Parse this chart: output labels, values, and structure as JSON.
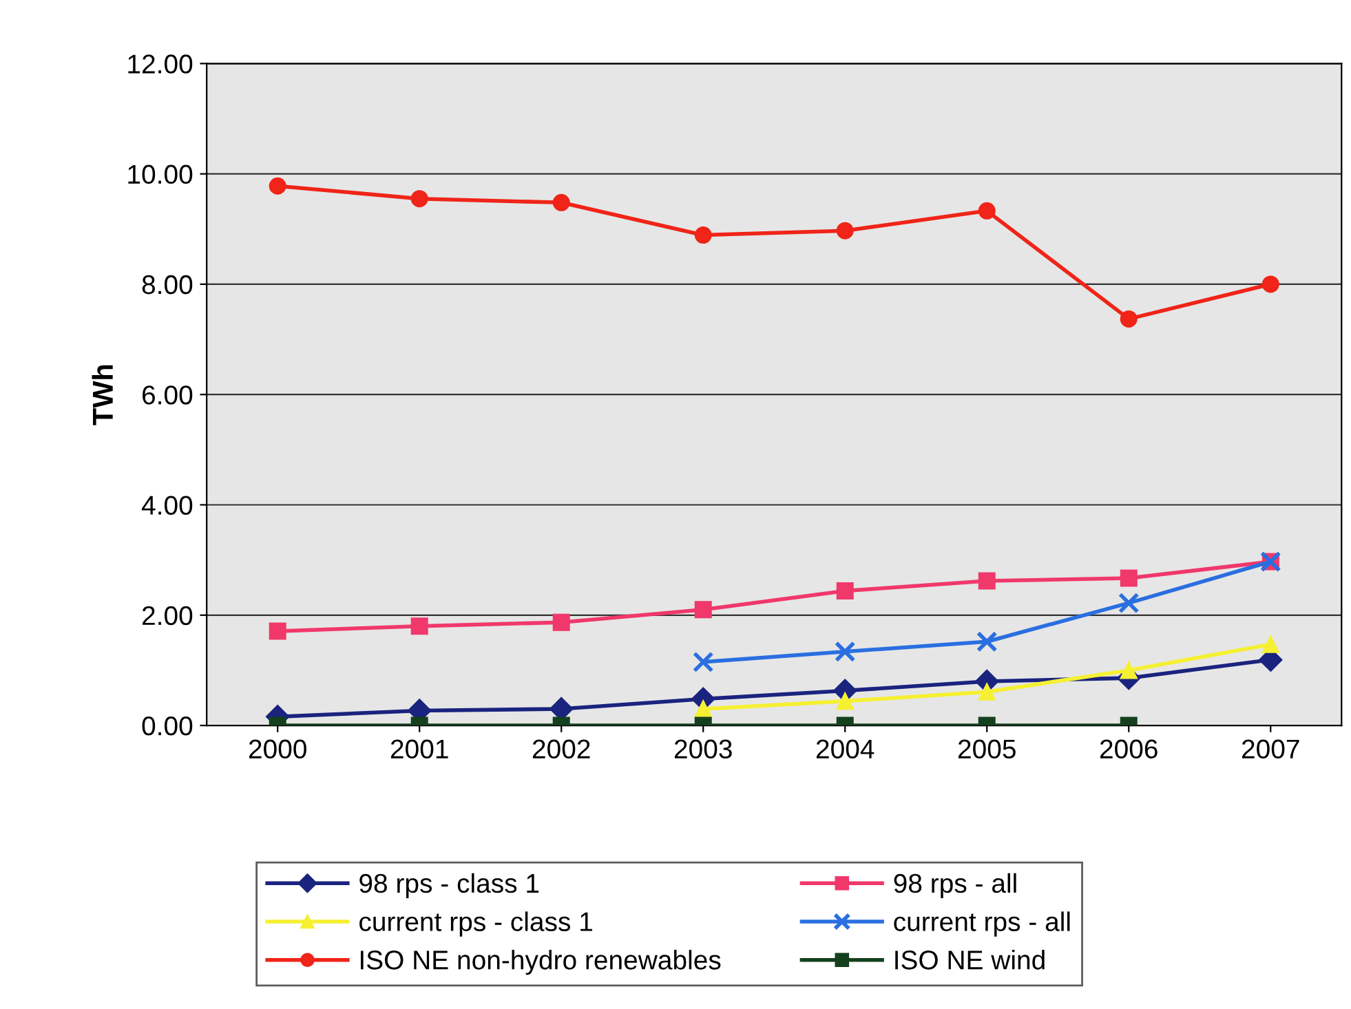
{
  "chart_data": {
    "type": "line",
    "ylabel": "TWh",
    "categories": [
      "2000",
      "2001",
      "2002",
      "2003",
      "2004",
      "2005",
      "2006",
      "2007"
    ],
    "ylim": [
      0,
      12
    ],
    "yticks": [
      {
        "value": 0,
        "label": "0.00"
      },
      {
        "value": 2,
        "label": "2.00"
      },
      {
        "value": 4,
        "label": "4.00"
      },
      {
        "value": 6,
        "label": "6.00"
      },
      {
        "value": 8,
        "label": "8.00"
      },
      {
        "value": 10,
        "label": "10.00"
      },
      {
        "value": 12,
        "label": "12.00"
      }
    ],
    "grid": "y",
    "legend": "bottom",
    "line_style": "solid",
    "series": [
      {
        "name": "98 rps - class 1",
        "color": "#1a237e",
        "marker": "diamond",
        "values": [
          0.16,
          0.27,
          0.3,
          0.48,
          0.63,
          0.8,
          0.86,
          1.19
        ]
      },
      {
        "name": "98 rps - all",
        "color": "#f0386b",
        "marker": "square",
        "values": [
          1.71,
          1.8,
          1.87,
          2.1,
          2.44,
          2.62,
          2.67,
          2.97
        ]
      },
      {
        "name": "current rps - class 1",
        "color": "#f5f032",
        "marker": "triangle",
        "values": [
          null,
          null,
          null,
          0.3,
          0.44,
          0.61,
          1.0,
          1.47
        ]
      },
      {
        "name": "current rps - all",
        "color": "#2a6fe0",
        "marker": "cross",
        "values": [
          null,
          null,
          null,
          1.15,
          1.34,
          1.52,
          2.22,
          2.97
        ]
      },
      {
        "name": "ISO NE non-hydro renewables",
        "color": "#f02418",
        "marker": "circle",
        "values": [
          9.78,
          9.55,
          9.48,
          8.89,
          8.97,
          9.33,
          7.37,
          8.0
        ]
      },
      {
        "name": "ISO NE wind",
        "color": "#14401e",
        "marker": "square",
        "values": [
          0,
          0,
          0,
          0,
          0,
          0,
          0,
          null
        ]
      }
    ]
  }
}
